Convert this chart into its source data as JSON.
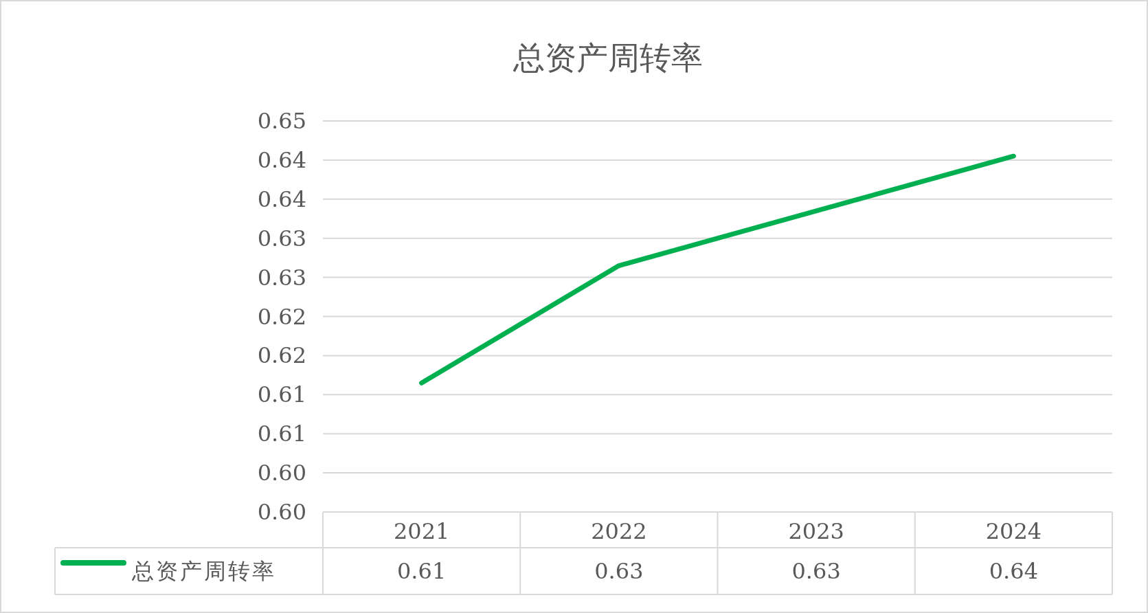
{
  "chart_data": {
    "type": "line",
    "title": "总资产周转率",
    "categories": [
      "2021",
      "2022",
      "2023",
      "2024"
    ],
    "series": [
      {
        "name": "总资产周转率",
        "color": "#00b050",
        "values": [
          0.612,
          0.627,
          0.634,
          0.641
        ],
        "value_labels": [
          "0.61",
          "0.63",
          "0.63",
          "0.64"
        ]
      }
    ],
    "ylim": [
      0.5955,
      0.6455
    ],
    "yticks": [
      {
        "value": 0.5955,
        "label": "0.60"
      },
      {
        "value": 0.6005,
        "label": "0.60"
      },
      {
        "value": 0.6055,
        "label": "0.61"
      },
      {
        "value": 0.6105,
        "label": "0.61"
      },
      {
        "value": 0.6155,
        "label": "0.62"
      },
      {
        "value": 0.6205,
        "label": "0.62"
      },
      {
        "value": 0.6255,
        "label": "0.63"
      },
      {
        "value": 0.6305,
        "label": "0.63"
      },
      {
        "value": 0.6355,
        "label": "0.64"
      },
      {
        "value": 0.6405,
        "label": "0.64"
      },
      {
        "value": 0.6455,
        "label": "0.65"
      }
    ],
    "grid": "y",
    "legend": "bottom",
    "line_style": "solid"
  }
}
